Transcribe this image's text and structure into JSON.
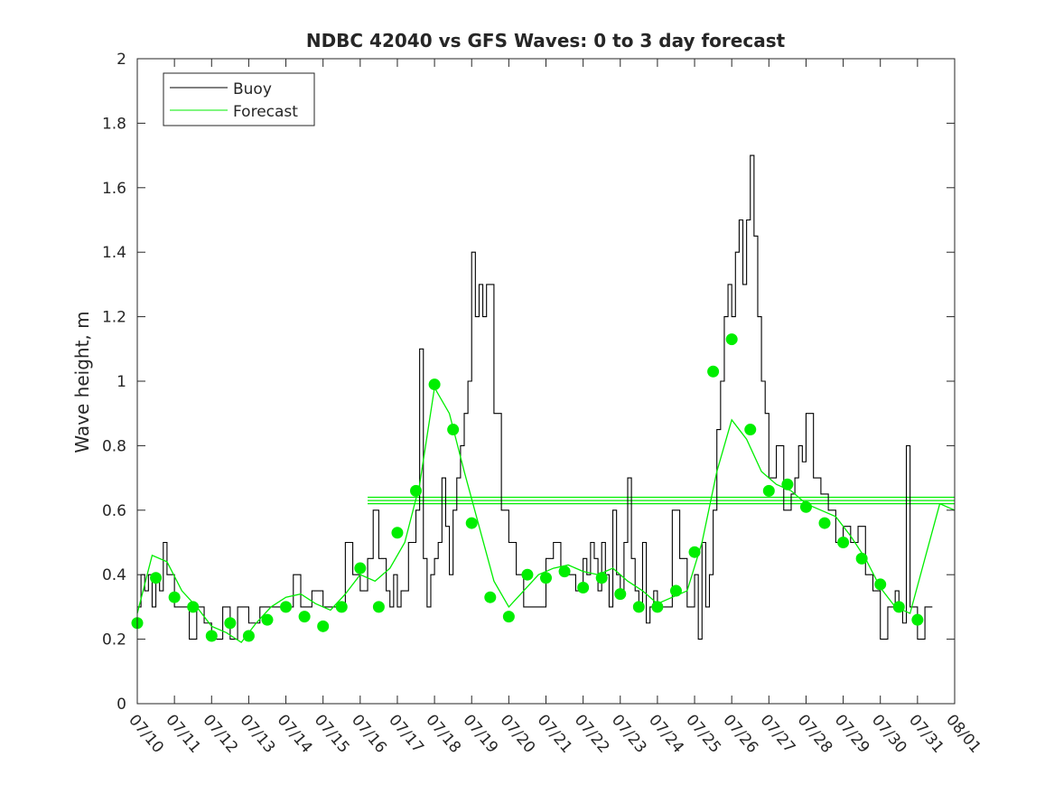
{
  "chart_data": {
    "type": "line",
    "title": "NDBC 42040 vs GFS Waves: 0 to 3 day forecast",
    "xlabel": "",
    "ylabel": "Wave height, m",
    "ylim": [
      0,
      2
    ],
    "yticks": [
      "0",
      "0.2",
      "0.4",
      "0.6",
      "0.8",
      "1",
      "1.2",
      "1.4",
      "1.6",
      "1.8",
      "2"
    ],
    "xticks": [
      "07/10",
      "07/11",
      "07/12",
      "07/13",
      "07/14",
      "07/15",
      "07/16",
      "07/17",
      "07/18",
      "07/19",
      "07/20",
      "07/21",
      "07/22",
      "07/23",
      "07/24",
      "07/25",
      "07/26",
      "07/27",
      "07/28",
      "07/29",
      "07/30",
      "07/31",
      "08/01"
    ],
    "xlim_days": [
      0,
      22
    ],
    "grid": false,
    "legend_position": "top-left",
    "legend": [
      {
        "label": "Buoy",
        "color": "#000000"
      },
      {
        "label": "Forecast",
        "color": "#00ee00"
      }
    ],
    "colors": {
      "buoy": "#000000",
      "forecast": "#00ee00",
      "marker": "#00ee00",
      "axis": "#262626"
    },
    "series": [
      {
        "name": "Buoy",
        "x": [
          0,
          0.1,
          0.2,
          0.3,
          0.4,
          0.5,
          0.6,
          0.7,
          0.8,
          1,
          1.2,
          1.4,
          1.6,
          1.8,
          2,
          2.3,
          2.5,
          2.7,
          3,
          3.3,
          3.6,
          4,
          4.2,
          4.4,
          4.7,
          5,
          5.3,
          5.6,
          5.8,
          6,
          6.2,
          6.35,
          6.5,
          6.7,
          6.8,
          6.9,
          7,
          7.1,
          7.3,
          7.5,
          7.6,
          7.7,
          7.8,
          7.9,
          8,
          8.1,
          8.2,
          8.3,
          8.4,
          8.5,
          8.6,
          8.7,
          8.8,
          8.9,
          9,
          9.1,
          9.2,
          9.3,
          9.4,
          9.6,
          9.8,
          10,
          10.2,
          10.4,
          10.6,
          10.8,
          11,
          11.2,
          11.4,
          11.6,
          11.8,
          12,
          12.1,
          12.2,
          12.3,
          12.4,
          12.5,
          12.6,
          12.7,
          12.8,
          12.9,
          13,
          13.1,
          13.2,
          13.3,
          13.4,
          13.5,
          13.6,
          13.7,
          13.8,
          13.9,
          14,
          14.2,
          14.4,
          14.6,
          14.8,
          15,
          15.1,
          15.2,
          15.3,
          15.4,
          15.5,
          15.6,
          15.7,
          15.8,
          15.9,
          16,
          16.1,
          16.2,
          16.3,
          16.4,
          16.5,
          16.6,
          16.7,
          16.8,
          16.9,
          17,
          17.2,
          17.4,
          17.6,
          17.7,
          17.8,
          17.9,
          18,
          18.2,
          18.4,
          18.6,
          18.8,
          19,
          19.2,
          19.4,
          19.6,
          19.8,
          20,
          20.2,
          20.4,
          20.5,
          20.6,
          20.7,
          20.8,
          21,
          21.2,
          21.4
        ],
        "y": [
          0.3,
          0.4,
          0.35,
          0.4,
          0.3,
          0.4,
          0.35,
          0.5,
          0.4,
          0.3,
          0.3,
          0.2,
          0.3,
          0.25,
          0.2,
          0.3,
          0.2,
          0.3,
          0.25,
          0.3,
          0.3,
          0.3,
          0.4,
          0.3,
          0.35,
          0.3,
          0.3,
          0.5,
          0.4,
          0.35,
          0.45,
          0.6,
          0.45,
          0.35,
          0.3,
          0.4,
          0.3,
          0.35,
          0.5,
          0.6,
          1.1,
          0.45,
          0.3,
          0.4,
          0.45,
          0.5,
          0.7,
          0.55,
          0.4,
          0.6,
          0.7,
          0.8,
          0.9,
          1.0,
          1.4,
          1.2,
          1.3,
          1.2,
          1.3,
          0.9,
          0.6,
          0.5,
          0.4,
          0.3,
          0.3,
          0.3,
          0.45,
          0.5,
          0.4,
          0.4,
          0.35,
          0.45,
          0.4,
          0.5,
          0.45,
          0.35,
          0.5,
          0.4,
          0.3,
          0.6,
          0.4,
          0.35,
          0.5,
          0.7,
          0.45,
          0.35,
          0.3,
          0.5,
          0.25,
          0.3,
          0.35,
          0.3,
          0.3,
          0.6,
          0.45,
          0.3,
          0.4,
          0.2,
          0.5,
          0.3,
          0.4,
          0.6,
          0.85,
          1.0,
          1.2,
          1.3,
          1.2,
          1.4,
          1.5,
          1.3,
          1.5,
          1.7,
          1.45,
          1.2,
          1.0,
          0.9,
          0.7,
          0.8,
          0.6,
          0.65,
          0.7,
          0.8,
          0.75,
          0.9,
          0.7,
          0.65,
          0.6,
          0.5,
          0.55,
          0.5,
          0.55,
          0.4,
          0.35,
          0.2,
          0.3,
          0.35,
          0.3,
          0.25,
          0.8,
          0.3,
          0.2,
          0.3,
          0.3
        ]
      },
      {
        "name": "Forecast",
        "x": [
          0,
          0.4,
          0.8,
          1.2,
          1.6,
          2,
          2.4,
          2.8,
          3.2,
          3.6,
          4,
          4.4,
          4.8,
          5.2,
          5.6,
          6,
          6.4,
          6.8,
          7.2,
          7.6,
          8,
          8.4,
          8.8,
          9.2,
          9.6,
          10,
          10.4,
          10.8,
          11.2,
          11.6,
          12,
          12.4,
          12.8,
          13.2,
          13.6,
          14,
          14.4,
          14.8,
          15.2,
          15.6,
          16,
          16.4,
          16.8,
          17.2,
          17.6,
          18,
          18.4,
          18.8,
          19.2,
          19.6,
          20,
          20.4,
          20.8,
          21.2,
          21.6,
          22
        ],
        "y": [
          0.28,
          0.46,
          0.44,
          0.35,
          0.3,
          0.24,
          0.22,
          0.19,
          0.25,
          0.3,
          0.33,
          0.34,
          0.31,
          0.29,
          0.34,
          0.4,
          0.38,
          0.42,
          0.5,
          0.68,
          0.98,
          0.9,
          0.72,
          0.55,
          0.38,
          0.3,
          0.35,
          0.4,
          0.42,
          0.43,
          0.41,
          0.4,
          0.42,
          0.38,
          0.35,
          0.31,
          0.33,
          0.35,
          0.5,
          0.72,
          0.88,
          0.82,
          0.72,
          0.68,
          0.66,
          0.62,
          0.6,
          0.58,
          0.52,
          0.45,
          0.36,
          0.3,
          0.28,
          0.45,
          0.62,
          0.6
        ]
      }
    ],
    "forecast_markers": {
      "x": [
        0,
        0.5,
        1,
        1.5,
        2,
        2.5,
        3,
        3.5,
        4,
        4.5,
        5,
        5.5,
        6,
        6.5,
        7,
        7.5,
        8,
        8.5,
        9,
        9.5,
        10,
        10.5,
        11,
        11.5,
        12,
        12.5,
        13,
        13.5,
        14,
        14.5,
        15,
        15.5,
        16,
        16.5,
        17,
        17.5,
        18,
        18.5,
        19,
        19.5,
        20,
        20.5,
        21
      ],
      "y": [
        0.25,
        0.39,
        0.33,
        0.3,
        0.21,
        0.25,
        0.21,
        0.26,
        0.3,
        0.27,
        0.24,
        0.3,
        0.42,
        0.3,
        0.53,
        0.66,
        0.99,
        0.85,
        0.56,
        0.33,
        0.27,
        0.4,
        0.39,
        0.41,
        0.36,
        0.39,
        0.34,
        0.3,
        0.3,
        0.35,
        0.47,
        1.03,
        1.13,
        0.85,
        0.66,
        0.68,
        0.61,
        0.56,
        0.5,
        0.45,
        0.37,
        0.3,
        0.26
      ]
    },
    "horizontal_lines": [
      0.64,
      0.63,
      0.62
    ]
  }
}
